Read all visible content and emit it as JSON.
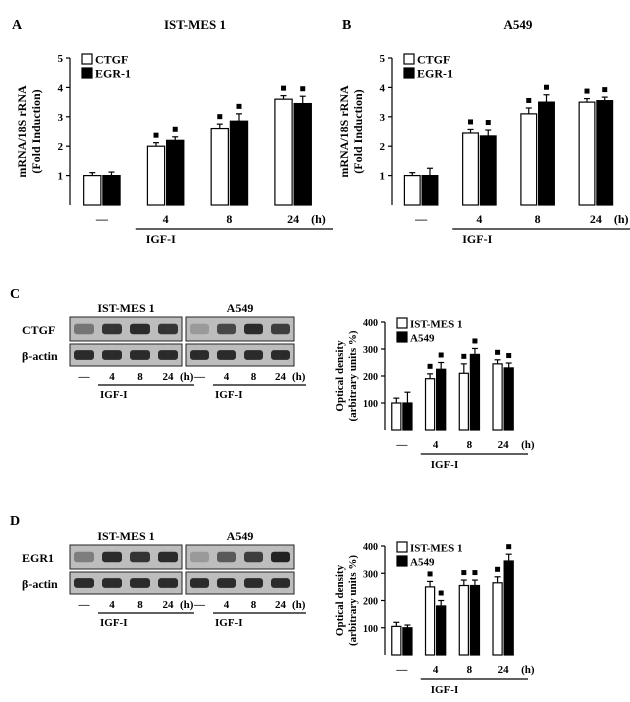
{
  "figure": {
    "panel_labels": [
      "A",
      "B",
      "C",
      "D"
    ]
  },
  "chart_data": [
    {
      "id": "A",
      "type": "bar",
      "title": "IST-MES 1",
      "ylabel": "mRNA/18S rRNA (Fold Induction)",
      "ylabel_lines": [
        "mRNA/18S rRNA",
        "(Fold Induction)"
      ],
      "ylim": [
        0,
        5
      ],
      "yticks": [
        1,
        2,
        3,
        4,
        5
      ],
      "categories": [
        "—",
        "4",
        "8",
        "24"
      ],
      "unit": "(h)",
      "treatment": "IGF-I",
      "legend": [
        "CTGF",
        "EGR-1"
      ],
      "series": [
        {
          "name": "CTGF",
          "fill": "#ffffff",
          "values": [
            1.0,
            2.0,
            2.6,
            3.6
          ],
          "errors": [
            0.1,
            0.12,
            0.15,
            0.12
          ],
          "sig": [
            false,
            true,
            true,
            true
          ]
        },
        {
          "name": "EGR-1",
          "fill": "#000000",
          "values": [
            1.0,
            2.2,
            2.85,
            3.45
          ],
          "errors": [
            0.12,
            0.12,
            0.25,
            0.25
          ],
          "sig": [
            false,
            true,
            true,
            true
          ]
        }
      ]
    },
    {
      "id": "B",
      "type": "bar",
      "title": "A549",
      "ylabel": "mRNA/18S rRNA (Fold Induction)",
      "ylabel_lines": [
        "mRNA/18S rRNA",
        "(Fold Induction)"
      ],
      "ylim": [
        0,
        5
      ],
      "yticks": [
        1,
        2,
        3,
        4,
        5
      ],
      "categories": [
        "—",
        "4",
        "8",
        "24"
      ],
      "unit": "(h)",
      "treatment": "IGF-I",
      "legend": [
        "CTGF",
        "EGR-1"
      ],
      "series": [
        {
          "name": "CTGF",
          "fill": "#ffffff",
          "values": [
            1.0,
            2.45,
            3.1,
            3.5
          ],
          "errors": [
            0.1,
            0.12,
            0.2,
            0.12
          ],
          "sig": [
            false,
            true,
            true,
            true
          ]
        },
        {
          "name": "EGR-1",
          "fill": "#000000",
          "values": [
            1.0,
            2.35,
            3.5,
            3.55
          ],
          "errors": [
            0.25,
            0.2,
            0.25,
            0.12
          ],
          "sig": [
            false,
            true,
            true,
            true
          ]
        }
      ]
    },
    {
      "id": "C",
      "type": "bar",
      "ylabel": "Optical density (arbitrary units %)",
      "ylabel_lines": [
        "Optical density",
        "(arbitrary units %)"
      ],
      "ylim": [
        0,
        400
      ],
      "yticks": [
        100,
        200,
        300,
        400
      ],
      "categories": [
        "—",
        "4",
        "8",
        "24"
      ],
      "unit": "(h)",
      "treatment": "IGF-I",
      "legend": [
        "IST-MES 1",
        "A549"
      ],
      "series": [
        {
          "name": "IST-MES 1",
          "fill": "#ffffff",
          "values": [
            100,
            190,
            210,
            245
          ],
          "errors": [
            18,
            18,
            35,
            15
          ],
          "sig": [
            false,
            true,
            true,
            true
          ]
        },
        {
          "name": "A549",
          "fill": "#000000",
          "values": [
            100,
            225,
            280,
            230
          ],
          "errors": [
            40,
            25,
            22,
            18
          ],
          "sig": [
            false,
            true,
            true,
            true
          ]
        }
      ]
    },
    {
      "id": "D",
      "type": "bar",
      "ylabel": "Optical density (arbitrary units %)",
      "ylabel_lines": [
        "Optical density",
        "(arbitrary units %)"
      ],
      "ylim": [
        0,
        400
      ],
      "yticks": [
        100,
        200,
        300,
        400
      ],
      "categories": [
        "—",
        "4",
        "8",
        "24"
      ],
      "unit": "(h)",
      "treatment": "IGF-I",
      "legend": [
        "IST-MES 1",
        "A549"
      ],
      "series": [
        {
          "name": "IST-MES 1",
          "fill": "#ffffff",
          "values": [
            105,
            250,
            255,
            265
          ],
          "errors": [
            15,
            20,
            20,
            22
          ],
          "sig": [
            false,
            true,
            true,
            true
          ]
        },
        {
          "name": "A549",
          "fill": "#000000",
          "values": [
            100,
            180,
            255,
            345
          ],
          "errors": [
            10,
            20,
            20,
            25
          ],
          "sig": [
            false,
            true,
            true,
            true
          ]
        }
      ]
    }
  ],
  "blots": [
    {
      "id": "C",
      "labels": [
        "CTGF",
        "β-actin"
      ],
      "groups": [
        {
          "title": "IST-MES 1",
          "lanes": [
            "—",
            "4",
            "8",
            "24"
          ],
          "unit": "(h)",
          "treatment": "IGF-I"
        },
        {
          "title": "A549",
          "lanes": [
            "—",
            "4",
            "8",
            "24"
          ],
          "unit": "(h)",
          "treatment": "IGF-I"
        }
      ]
    },
    {
      "id": "D",
      "labels": [
        "EGR1",
        "β-actin"
      ],
      "groups": [
        {
          "title": "IST-MES 1",
          "lanes": [
            "—",
            "4",
            "8",
            "24"
          ],
          "unit": "(h)",
          "treatment": "IGF-I"
        },
        {
          "title": "A549",
          "lanes": [
            "—",
            "4",
            "8",
            "24"
          ],
          "unit": "(h)",
          "treatment": "IGF-I"
        }
      ]
    }
  ]
}
